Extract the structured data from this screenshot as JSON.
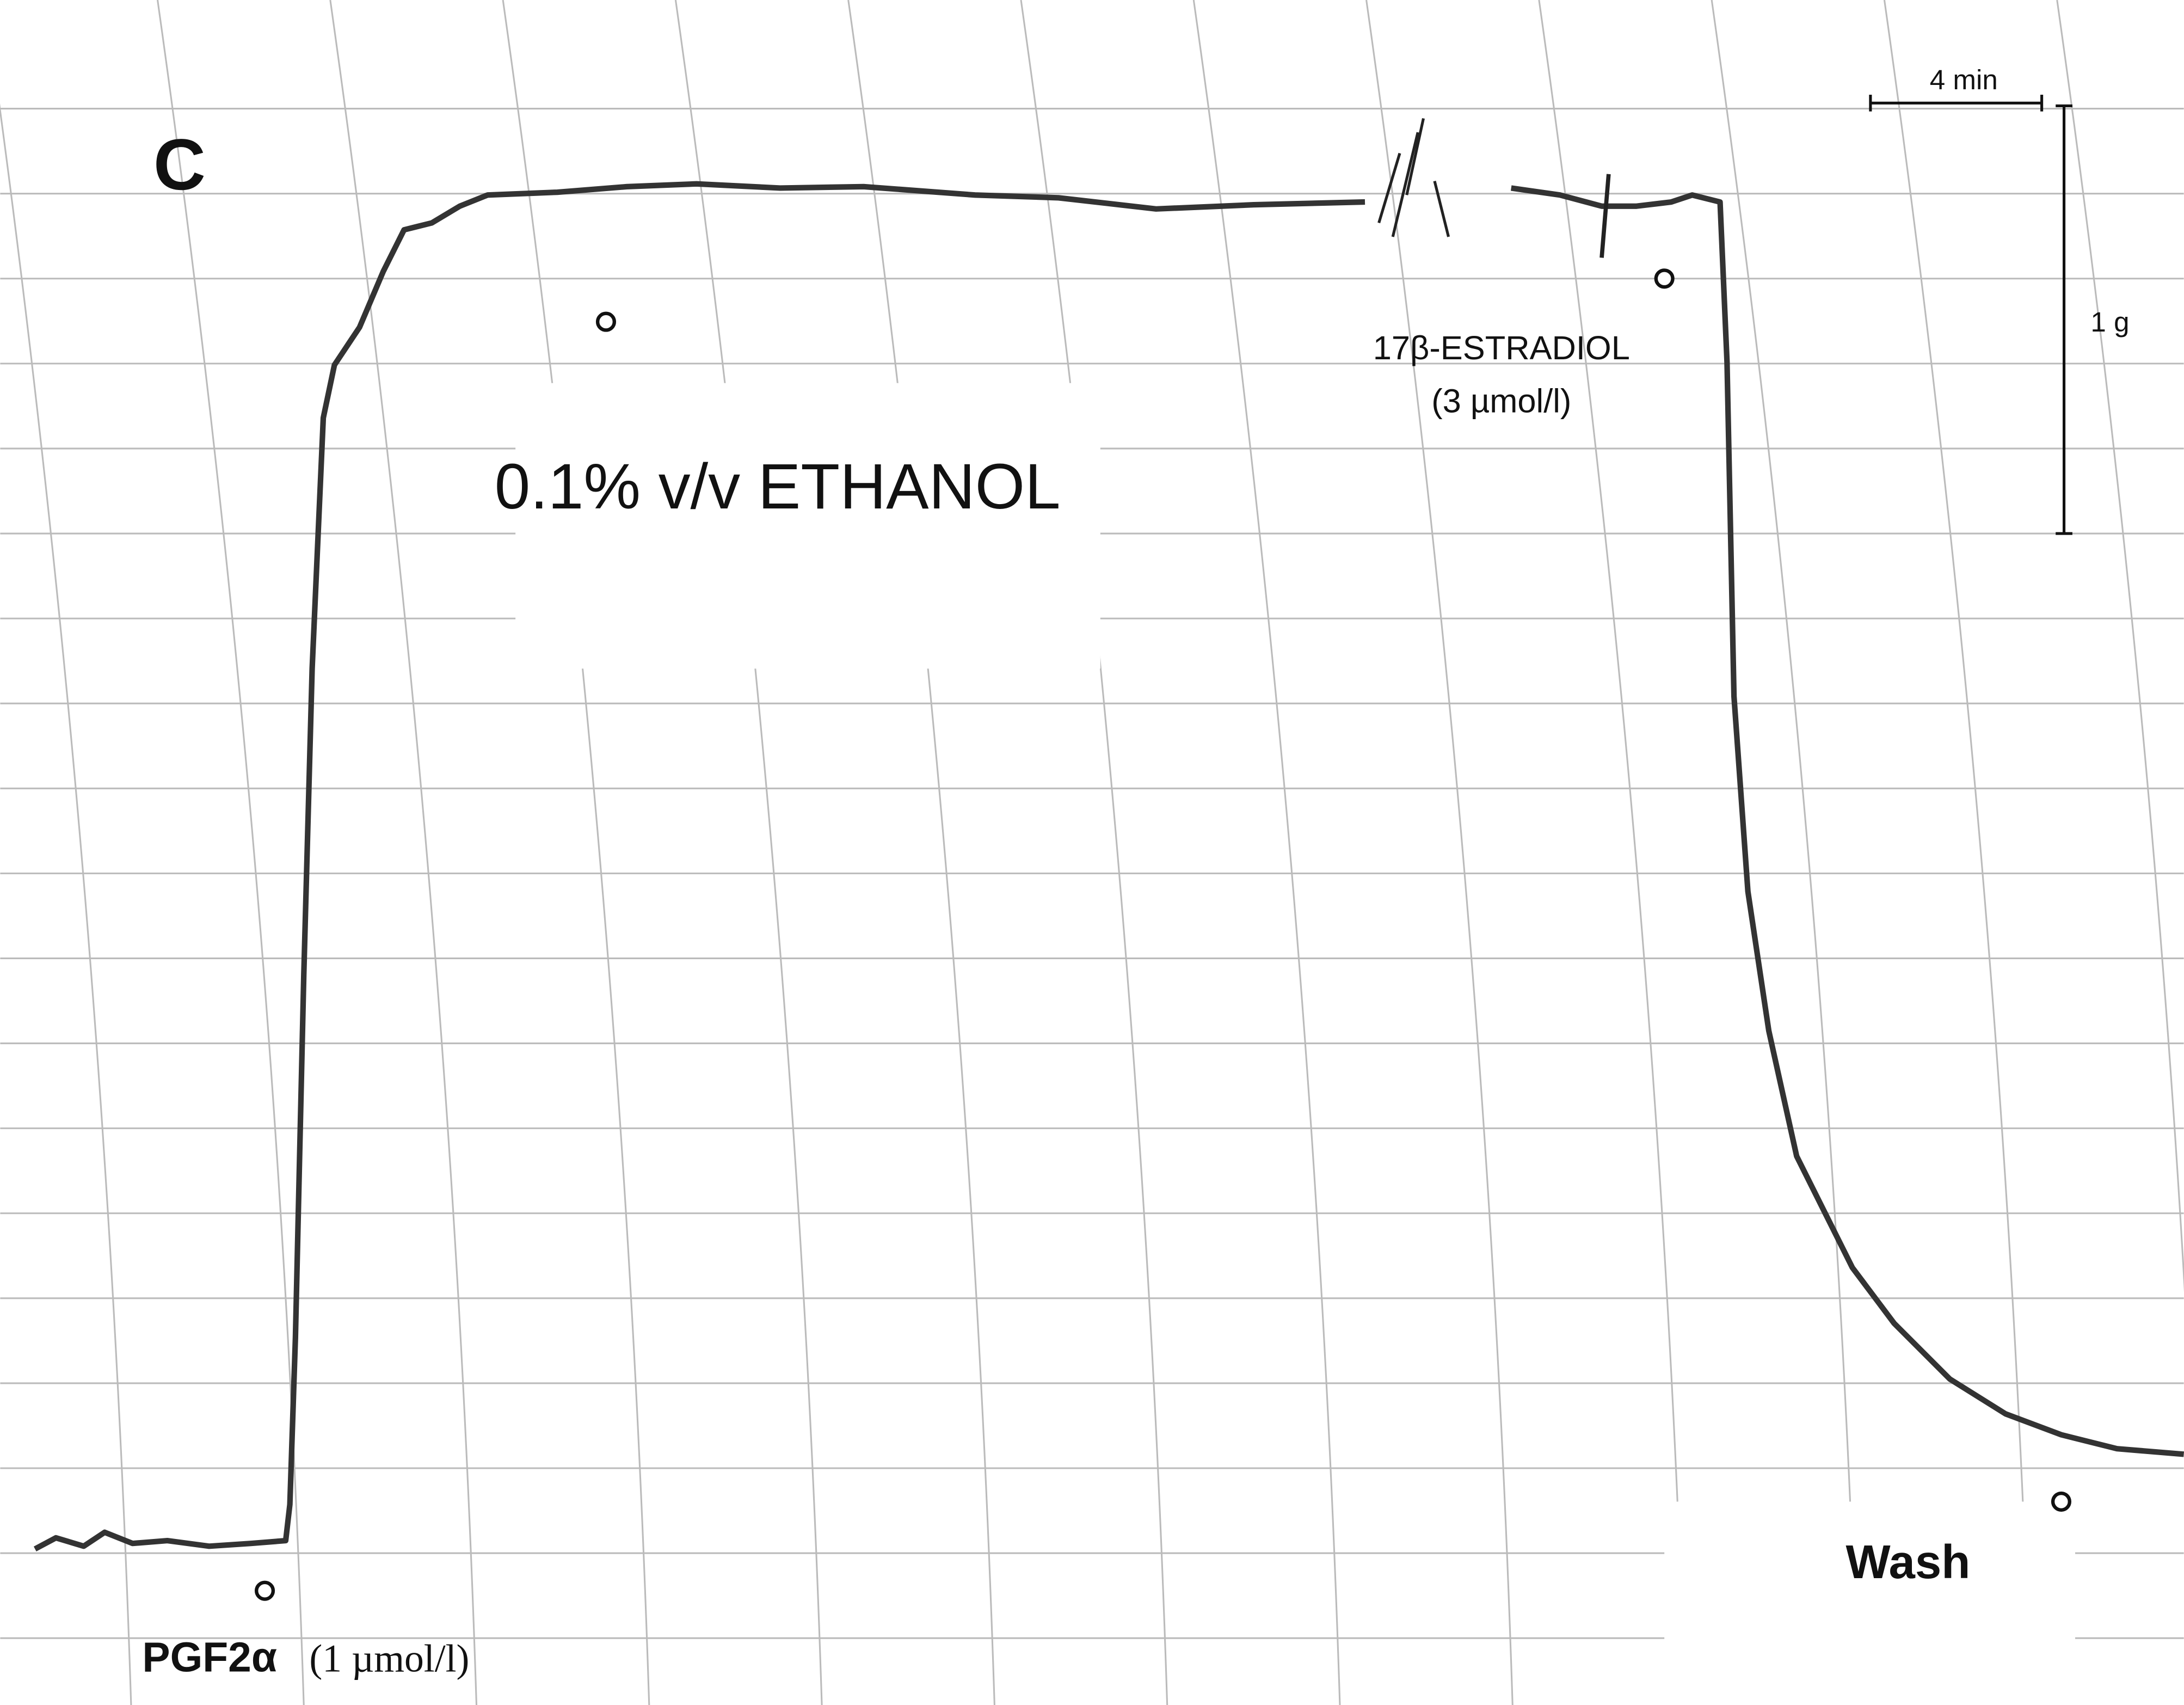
{
  "panel_label": "C",
  "scale_bar": {
    "time": "4 min",
    "force": "1 g"
  },
  "annotations": {
    "vehicle": "0.1% v/v ETHANOL",
    "estradiol": [
      "17β-ESTRADIOL",
      "(3 µmol/l)"
    ],
    "agonist": {
      "name": "PGF2α",
      "dose": "(1 µmol/l)"
    },
    "wash": "Wash"
  }
}
